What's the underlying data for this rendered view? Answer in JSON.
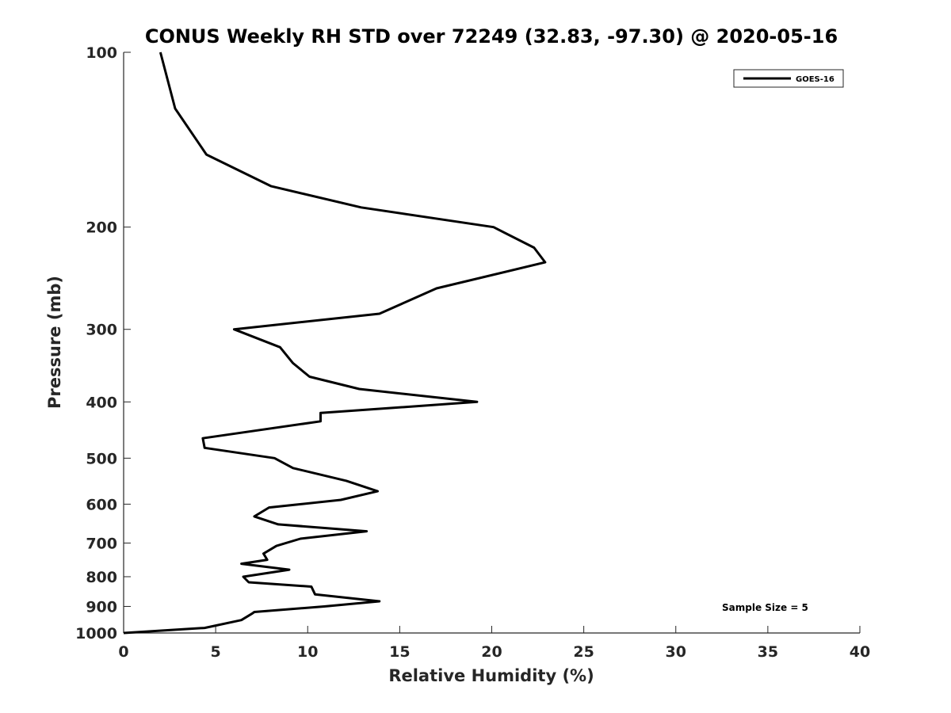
{
  "chart_data": {
    "type": "line",
    "title": "CONUS Weekly RH STD over 72249 (32.83, -97.30) @ 2020-05-16",
    "xlabel": "Relative Humidity (%)",
    "ylabel": "Pressure (mb)",
    "xlim": [
      0,
      40
    ],
    "ylim": [
      100,
      1000
    ],
    "y_scale": "log",
    "y_reversed": true,
    "grid": false,
    "legend_position": "top-right",
    "x_ticks": [
      "0",
      "5",
      "10",
      "15",
      "20",
      "25",
      "30",
      "35",
      "40"
    ],
    "y_ticks": [
      "100",
      "200",
      "300",
      "400",
      "500",
      "600",
      "700",
      "800",
      "900",
      "1000"
    ],
    "series": [
      {
        "name": "GOES-16",
        "color": "#000000",
        "x": [
          2.0,
          2.8,
          4.5,
          8.0,
          12.9,
          20.1,
          22.3,
          22.9,
          17.0,
          13.9,
          6.0,
          8.5,
          9.2,
          10.1,
          12.8,
          19.2,
          10.7,
          10.7,
          4.3,
          4.4,
          8.2,
          9.2,
          12.1,
          13.8,
          11.8,
          7.9,
          7.1,
          8.4,
          13.2,
          9.6,
          8.3,
          7.6,
          7.8,
          6.4,
          9.0,
          6.5,
          6.8,
          10.2,
          10.4,
          13.9,
          10.9,
          7.1,
          7.0,
          6.4,
          4.4,
          0.0
        ],
        "y": [
          100,
          125,
          150,
          170,
          185,
          200,
          217,
          230,
          255,
          282,
          300,
          322,
          343,
          362,
          380,
          400,
          418,
          432,
          462,
          480,
          500,
          520,
          547,
          570,
          590,
          608,
          630,
          650,
          668,
          688,
          708,
          730,
          748,
          760,
          778,
          800,
          818,
          832,
          858,
          882,
          900,
          920,
          925,
          950,
          980,
          1000
        ]
      }
    ],
    "annotations": [
      "Sample Size = 5"
    ]
  }
}
